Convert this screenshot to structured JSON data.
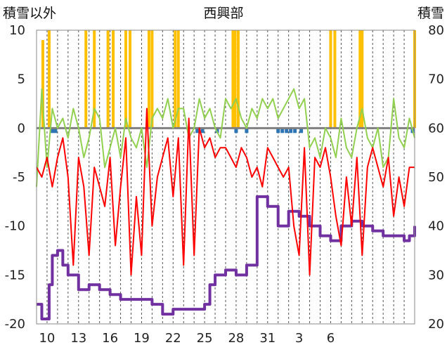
{
  "chart_data": {
    "type": "line",
    "title": "西興部",
    "ylabel_left": "積雪以外",
    "ylabel_right": "積雪",
    "ylim_left": [
      -20,
      10
    ],
    "ylim_right": [
      20,
      80
    ],
    "yticks_left": [
      "-20",
      "-15",
      "-10",
      "-5",
      "0",
      "5",
      "10"
    ],
    "yticks_right": [
      "20",
      "30",
      "40",
      "50",
      "60",
      "70",
      "80"
    ],
    "xtick_labels": [
      "10",
      "13",
      "16",
      "19",
      "22",
      "25",
      "28",
      "31",
      "3",
      "6"
    ],
    "days": 36,
    "colors": {
      "snow_depth": "#7030A0",
      "temperature_max": "#92D050",
      "temperature_min": "#FF0000",
      "sunshine": "#FFC000",
      "precipitation": "#2E75B6",
      "zero_line": "#7f7f7f",
      "grid": "#555555"
    },
    "series": [
      {
        "key": "snow_depth",
        "axis": "right",
        "x": [
          0,
          0.5,
          1,
          1.2,
          1.5,
          2,
          2.5,
          3,
          4,
          5,
          6,
          7,
          8,
          9,
          10,
          11,
          12,
          13,
          14,
          15,
          16,
          16.5,
          17,
          18,
          19,
          20,
          21,
          22,
          23,
          24,
          25,
          26,
          27,
          27.5,
          28,
          29,
          30,
          31,
          32,
          33,
          34,
          35,
          35.5,
          36
        ],
        "values": [
          24,
          21,
          21,
          28,
          34,
          35,
          32,
          30,
          27,
          28,
          27,
          26,
          25,
          25,
          25,
          24,
          22,
          23,
          23,
          23,
          24,
          28,
          30,
          31,
          30,
          32,
          46,
          44,
          40,
          43,
          42,
          40,
          38,
          38,
          37,
          40,
          41,
          40,
          39,
          38,
          38,
          37,
          38,
          40
        ]
      },
      {
        "key": "temperature_max",
        "axis": "left",
        "x": [
          0,
          0.5,
          1,
          1.5,
          2,
          2.5,
          3,
          3.5,
          4,
          4.5,
          5,
          5.5,
          6,
          6.5,
          7,
          7.5,
          8,
          8.5,
          9,
          9.5,
          10,
          10.5,
          11,
          11.5,
          12,
          12.5,
          13,
          13.5,
          14,
          14.5,
          15,
          15.5,
          16,
          16.5,
          17,
          17.5,
          18,
          18.5,
          19,
          19.5,
          20,
          20.5,
          21,
          21.5,
          22,
          22.5,
          23,
          23.5,
          24,
          24.5,
          25,
          25.5,
          26,
          26.5,
          27,
          27.5,
          28,
          28.5,
          29,
          29.5,
          30,
          30.5,
          31,
          31.5,
          32,
          32.5,
          33,
          33.5,
          34,
          34.5,
          35,
          35.5,
          36
        ],
        "values": [
          -6,
          4,
          -4,
          2,
          0,
          1,
          -1,
          2,
          0,
          -3,
          -1,
          2,
          1,
          -4,
          -2,
          0,
          -3,
          1,
          -1,
          -2,
          0,
          -4,
          1,
          2,
          1,
          3,
          0,
          2,
          2,
          -1,
          0,
          3,
          1,
          2,
          0,
          -1,
          3,
          2,
          3,
          1,
          0,
          2,
          1,
          3,
          2,
          3,
          1,
          2,
          3,
          4,
          2,
          3,
          -2,
          -1,
          -3,
          0,
          -1,
          -3,
          1,
          -2,
          -3,
          0,
          2,
          -1,
          -2,
          0,
          -4,
          -3,
          3,
          -1,
          -2,
          1,
          -1
        ]
      },
      {
        "key": "temperature_min",
        "axis": "left",
        "x": [
          0,
          0.5,
          1,
          1.5,
          2,
          2.5,
          3,
          3.5,
          4,
          4.5,
          5,
          5.5,
          6,
          6.5,
          7,
          7.5,
          8,
          8.5,
          9,
          9.5,
          10,
          10.5,
          11,
          11.5,
          12,
          12.5,
          13,
          13.5,
          14,
          14.5,
          15,
          15.5,
          16,
          16.5,
          17,
          17.5,
          18,
          18.5,
          19,
          19.5,
          20,
          20.5,
          21,
          21.5,
          22,
          22.5,
          23,
          23.5,
          24,
          24.5,
          25,
          25.5,
          26,
          26.5,
          27,
          27.5,
          28,
          28.5,
          29,
          29.5,
          30,
          30.5,
          31,
          31.5,
          32,
          32.5,
          33,
          33.5,
          34,
          34.5,
          35,
          35.5,
          36
        ],
        "values": [
          -4,
          -5,
          -3,
          -6,
          -3,
          -1,
          -5,
          -14,
          -3,
          -6,
          -13,
          -4,
          -6,
          -8,
          -3,
          -12,
          -6,
          -1,
          -15,
          -7,
          -13,
          2,
          -10,
          -5,
          -3,
          -1,
          -7,
          -1,
          -14,
          1,
          -13,
          0,
          -2,
          -1,
          -3,
          -2,
          -2,
          -3,
          -4,
          -2,
          -3,
          -5,
          -4,
          -6,
          -2,
          -3,
          -4,
          -5,
          -4,
          -10,
          -13,
          -2,
          -15,
          -3,
          -4,
          -2,
          -5,
          -9,
          -12,
          -5,
          -10,
          -3,
          -13,
          -4,
          -2,
          -4,
          -6,
          -3,
          -9,
          -5,
          -8,
          -4,
          -4
        ]
      }
    ],
    "bars": [
      {
        "key": "sunshine",
        "axis": "left",
        "x": [
          0.6,
          1.2,
          4.7,
          5.5,
          6.8,
          7.3,
          8.5,
          8.9,
          10.7,
          11.0,
          13.2,
          13.5,
          18.7,
          18.9,
          19.2,
          28.0,
          28.4,
          30.8,
          31.0,
          36.0
        ],
        "values": [
          9,
          10,
          10,
          10,
          10,
          10,
          10,
          10,
          10,
          10,
          10,
          10,
          10,
          10,
          10,
          10,
          10,
          10,
          10,
          10
        ]
      },
      {
        "key": "precipitation",
        "axis": "left",
        "x": [
          1.5,
          1.8,
          15.3,
          15.8,
          17.2,
          19.0,
          20.0,
          23.0,
          23.4,
          23.8,
          24.2,
          24.6,
          25.2,
          35.8
        ],
        "values": [
          -0.5,
          -0.5,
          -0.5,
          -0.5,
          -0.5,
          -0.5,
          -0.5,
          -0.5,
          -0.5,
          -0.5,
          -0.5,
          -0.5,
          -0.5,
          -0.5
        ]
      }
    ]
  }
}
